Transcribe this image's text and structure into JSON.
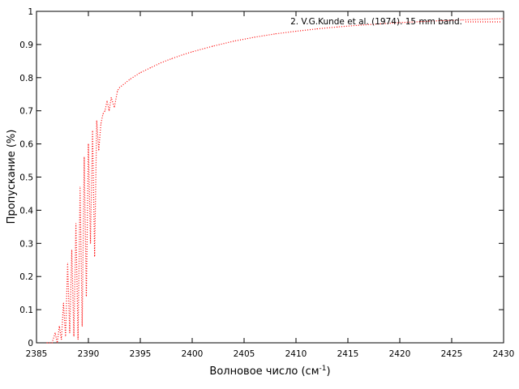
{
  "chart_data": {
    "type": "line",
    "title": "",
    "xlabel": "Волновое число (см",
    "xlabel_sup": "-1",
    "xlabel_end": ")",
    "ylabel": "Пропускание (%)",
    "xlim": [
      2385,
      2430
    ],
    "ylim": [
      0,
      1
    ],
    "x_ticks": [
      2385,
      2390,
      2395,
      2400,
      2405,
      2410,
      2415,
      2420,
      2425,
      2430
    ],
    "y_ticks": [
      0,
      0.1,
      0.2,
      0.3,
      0.4,
      0.5,
      0.6,
      0.7,
      0.8,
      0.9,
      1
    ],
    "y_tick_labels": [
      "0",
      "0.1",
      "0.2",
      "0.3",
      "0.4",
      "0.5",
      "0.6",
      "0.7",
      "0.8",
      "0.9",
      "1"
    ],
    "grid": false,
    "legend_position": "top-right",
    "series": [
      {
        "name": "2. V.G.Kunde et al. (1974). 15 mm band.",
        "color": "#ff0000",
        "line_style": "dotted",
        "x": [
          2386.0,
          2386.5,
          2386.8,
          2387.0,
          2387.2,
          2387.4,
          2387.6,
          2387.8,
          2388.0,
          2388.2,
          2388.4,
          2388.6,
          2388.8,
          2389.0,
          2389.2,
          2389.4,
          2389.6,
          2389.8,
          2390.0,
          2390.2,
          2390.4,
          2390.6,
          2390.8,
          2391.0,
          2391.2,
          2391.4,
          2391.6,
          2391.8,
          2392.0,
          2392.2,
          2392.5,
          2392.8,
          2393.0,
          2394.0,
          2395.0,
          2396.0,
          2397.0,
          2398.0,
          2399.0,
          2400.0,
          2402.0,
          2404.0,
          2406.0,
          2408.0,
          2410.0,
          2412.0,
          2414.0,
          2416.0,
          2418.0,
          2420.0,
          2422.0,
          2424.0,
          2426.0,
          2428.0,
          2430.0
        ],
        "y": [
          0.0,
          0.0,
          0.03,
          0.0,
          0.05,
          0.01,
          0.12,
          0.02,
          0.24,
          0.03,
          0.28,
          0.02,
          0.36,
          0.01,
          0.47,
          0.05,
          0.56,
          0.14,
          0.6,
          0.3,
          0.64,
          0.26,
          0.67,
          0.58,
          0.66,
          0.69,
          0.7,
          0.73,
          0.7,
          0.74,
          0.71,
          0.76,
          0.77,
          0.795,
          0.815,
          0.83,
          0.845,
          0.857,
          0.868,
          0.878,
          0.895,
          0.91,
          0.922,
          0.932,
          0.94,
          0.947,
          0.953,
          0.958,
          0.962,
          0.966,
          0.969,
          0.972,
          0.974,
          0.976,
          0.978
        ]
      }
    ]
  }
}
